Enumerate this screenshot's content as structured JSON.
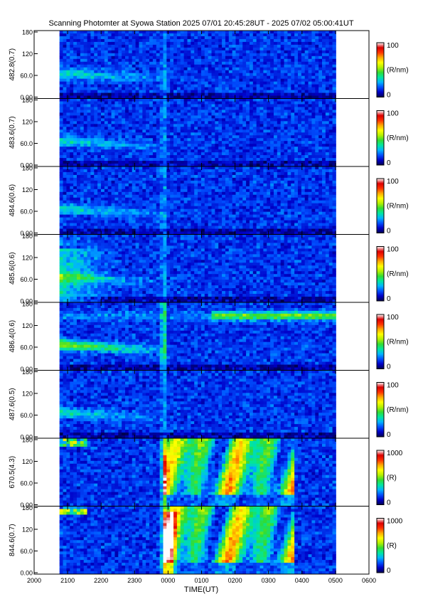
{
  "title": "Scanning Photomter at Syowa Station  2025 07/01 20:45:28UT - 2025 07/02 05:00:41UT",
  "xlabel": "TIME(UT)",
  "x_ticks": [
    "2000",
    "2100",
    "2200",
    "2300",
    "0000",
    "0100",
    "0200",
    "0300",
    "0400",
    "0500",
    "0600"
  ],
  "y_ticks": [
    "0.00",
    "60.0",
    "120",
    "180"
  ],
  "colors": {
    "scale": [
      "#000050",
      "#0000c8",
      "#0050ff",
      "#00b4ff",
      "#00e6a0",
      "#32dc32",
      "#b4f000",
      "#ffff00",
      "#ffaa00",
      "#ff3200",
      "#dc0000",
      "#ffffff"
    ],
    "outside": "#000000",
    "background": "#ffffff"
  },
  "chart_data": {
    "type": "heatmap",
    "x_axis": {
      "range": [
        "2000",
        "0600"
      ],
      "data_start": "20:45:28",
      "data_end": "05:00:41"
    },
    "y_axis": {
      "range": [
        0,
        180
      ],
      "unit_hint": "degrees"
    },
    "panels": [
      {
        "label": "482.8(0.7)",
        "colorbar": {
          "max_label": "100",
          "unit": "(R/nm)",
          "min_label": "0"
        }
      },
      {
        "label": "483.6(0.7)",
        "colorbar": {
          "max_label": "100",
          "unit": "(R/nm)",
          "min_label": "0"
        }
      },
      {
        "label": "484.6(0.6)",
        "colorbar": {
          "max_label": "100",
          "unit": "(R/nm)",
          "min_label": "0"
        }
      },
      {
        "label": "485.6(0.6)",
        "colorbar": {
          "max_label": "100",
          "unit": "(R/nm)",
          "min_label": "0"
        }
      },
      {
        "label": "486.4(0.6)",
        "colorbar": {
          "max_label": "100",
          "unit": "(R/nm)",
          "min_label": "0"
        }
      },
      {
        "label": "487.6(0.5)",
        "colorbar": {
          "max_label": "100",
          "unit": "(R/nm)",
          "min_label": "0"
        }
      },
      {
        "label": "670.5(4.3)",
        "colorbar": {
          "max_label": "1000",
          "unit": "(R)",
          "min_label": "0"
        }
      },
      {
        "label": "844.6(0.7)",
        "colorbar": {
          "max_label": "1000",
          "unit": "(R)",
          "min_label": "0"
        }
      }
    ]
  }
}
